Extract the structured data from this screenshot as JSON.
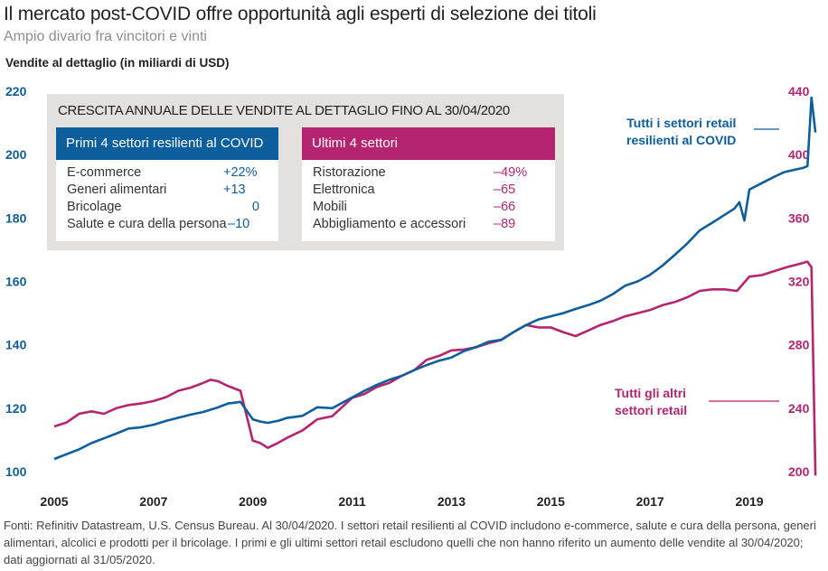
{
  "title": "Il mercato post-COVID offre opportunità agli esperti di selezione dei titoli",
  "subtitle": "Ampio divario fra vincitori e vinti",
  "unit_label": "Vendite al dettaglio (in miliardi di USD)",
  "colors": {
    "blue": "#0d5e9c",
    "magenta": "#b5246f",
    "inset_bg": "#e3e0dd"
  },
  "inset": {
    "title": "CRESCITA ANNUALE DELLE VENDITE AL DETTAGLIO FINO AL 30/04/2020",
    "left_panel": {
      "header": "Primi 4 settori resilienti al COVID",
      "rows": [
        {
          "label": "E-commerce",
          "value": "+22%"
        },
        {
          "label": "Generi alimentari",
          "value": "+13"
        },
        {
          "label": "Bricolage",
          "value": "0"
        },
        {
          "label": "Salute e cura della persona",
          "value": "–10"
        }
      ]
    },
    "right_panel": {
      "header": "Ultimi 4 settori",
      "rows": [
        {
          "label": "Ristorazione",
          "value": "–49%"
        },
        {
          "label": "Elettronica",
          "value": "–65"
        },
        {
          "label": "Mobili",
          "value": "–66"
        },
        {
          "label": "Abbigliamento e accessori",
          "value": "–89"
        }
      ]
    }
  },
  "annotations": {
    "blue": [
      "Tutti i settori retail",
      "resilienti al COVID"
    ],
    "magenta": [
      "Tutti gli altri",
      "settori retail"
    ]
  },
  "footnote": "Fonti: Refinitiv Datastream, U.S. Census Bureau. Al 30/04/2020. I settori retail resilienti al COVID includono e-commerce, salute e cura della persona, generi alimentari, alcolici e prodotti per il bricolage. I primi e gli ultimi settori retail escludono quelli che non hanno riferito un aumento delle vendite al 30/04/2020; dati aggiornati al 31/05/2020.",
  "chart_data": {
    "type": "line",
    "title": "Il mercato post-COVID offre opportunità agli esperti di selezione dei titoli",
    "subtitle": "Ampio divario fra vincitori e vinti",
    "xlabel": "",
    "ylabel": "Vendite al dettaglio (in miliardi di USD)",
    "x_ticks": [
      "2005",
      "2007",
      "2009",
      "2011",
      "2013",
      "2015",
      "2017",
      "2019"
    ],
    "xlim": [
      2005,
      2020.4
    ],
    "y_left": {
      "ticks": [
        100,
        120,
        140,
        160,
        180,
        200,
        220
      ],
      "ylim": [
        100,
        220
      ]
    },
    "y_right": {
      "ticks": [
        200,
        240,
        280,
        320,
        360,
        400,
        440
      ],
      "ylim": [
        200,
        440
      ]
    },
    "grid": false,
    "series": [
      {
        "name": "Tutti i settori retail resilienti al COVID",
        "axis": "left",
        "x": [
          2005.0,
          2005.25,
          2005.5,
          2005.75,
          2006.0,
          2006.25,
          2006.5,
          2006.75,
          2007.0,
          2007.25,
          2007.5,
          2007.75,
          2008.0,
          2008.25,
          2008.5,
          2008.75,
          2009.0,
          2009.15,
          2009.3,
          2009.5,
          2009.7,
          2010.0,
          2010.3,
          2010.6,
          2011.0,
          2011.25,
          2011.5,
          2011.75,
          2012.0,
          2012.25,
          2012.5,
          2012.75,
          2013.0,
          2013.25,
          2013.5,
          2013.75,
          2014.0,
          2014.25,
          2014.5,
          2014.75,
          2015.0,
          2015.25,
          2015.5,
          2015.75,
          2016.0,
          2016.25,
          2016.5,
          2016.75,
          2017.0,
          2017.25,
          2017.5,
          2017.75,
          2018.0,
          2018.25,
          2018.5,
          2018.7,
          2018.8,
          2018.9,
          2019.0,
          2019.25,
          2019.5,
          2019.7,
          2019.9,
          2020.08,
          2020.17,
          2020.25,
          2020.33
        ],
        "values": [
          104,
          105.5,
          107,
          109,
          110.5,
          112,
          113.6,
          114,
          114.8,
          116,
          117,
          118,
          118.8,
          120,
          121.5,
          122,
          116.5,
          115.8,
          115.4,
          116,
          117,
          117.6,
          120.3,
          120,
          123.4,
          125.5,
          127.4,
          129,
          130.2,
          132,
          133.6,
          135,
          136,
          138,
          139.3,
          141,
          141.6,
          144,
          146.2,
          148,
          149,
          150,
          151.3,
          152.5,
          153.9,
          156,
          158.7,
          160,
          162.1,
          165,
          168.4,
          172,
          176.1,
          178.5,
          181,
          183,
          185,
          179.2,
          189,
          191,
          193,
          194.5,
          195.2,
          195.8,
          196.4,
          218,
          207
        ]
      },
      {
        "name": "Tutti gli altri settori retail",
        "axis": "right",
        "x": [
          2005.0,
          2005.25,
          2005.5,
          2005.75,
          2006.0,
          2006.25,
          2006.5,
          2006.75,
          2007.0,
          2007.25,
          2007.5,
          2007.75,
          2008.0,
          2008.15,
          2008.3,
          2008.5,
          2008.75,
          2009.0,
          2009.15,
          2009.3,
          2009.5,
          2009.7,
          2010.0,
          2010.3,
          2010.6,
          2011.0,
          2011.25,
          2011.5,
          2011.75,
          2012.0,
          2012.25,
          2012.5,
          2012.75,
          2013.0,
          2013.25,
          2013.5,
          2013.75,
          2014.0,
          2014.25,
          2014.5,
          2014.75,
          2015.0,
          2015.25,
          2015.5,
          2015.75,
          2016.0,
          2016.25,
          2016.5,
          2016.75,
          2017.0,
          2017.25,
          2017.5,
          2017.75,
          2018.0,
          2018.25,
          2018.5,
          2018.75,
          2019.0,
          2019.25,
          2019.5,
          2019.75,
          2020.0,
          2020.17,
          2020.25,
          2020.33
        ],
        "values": [
          228.5,
          231,
          236.5,
          238,
          236.5,
          240,
          242,
          243,
          244.5,
          247,
          251,
          253,
          256,
          258,
          257,
          254,
          251,
          219.5,
          218,
          215,
          218,
          221.5,
          226,
          233,
          235,
          246.5,
          249,
          253.5,
          256,
          260.5,
          264,
          270.5,
          273,
          276.5,
          277,
          278.5,
          281,
          283,
          288,
          292.5,
          291,
          291,
          288,
          285.5,
          289,
          292.5,
          295,
          298,
          300,
          302,
          305,
          307,
          310,
          314,
          315,
          315,
          314,
          323,
          324,
          326.5,
          329,
          331,
          332.5,
          329,
          197.5
        ]
      }
    ]
  }
}
